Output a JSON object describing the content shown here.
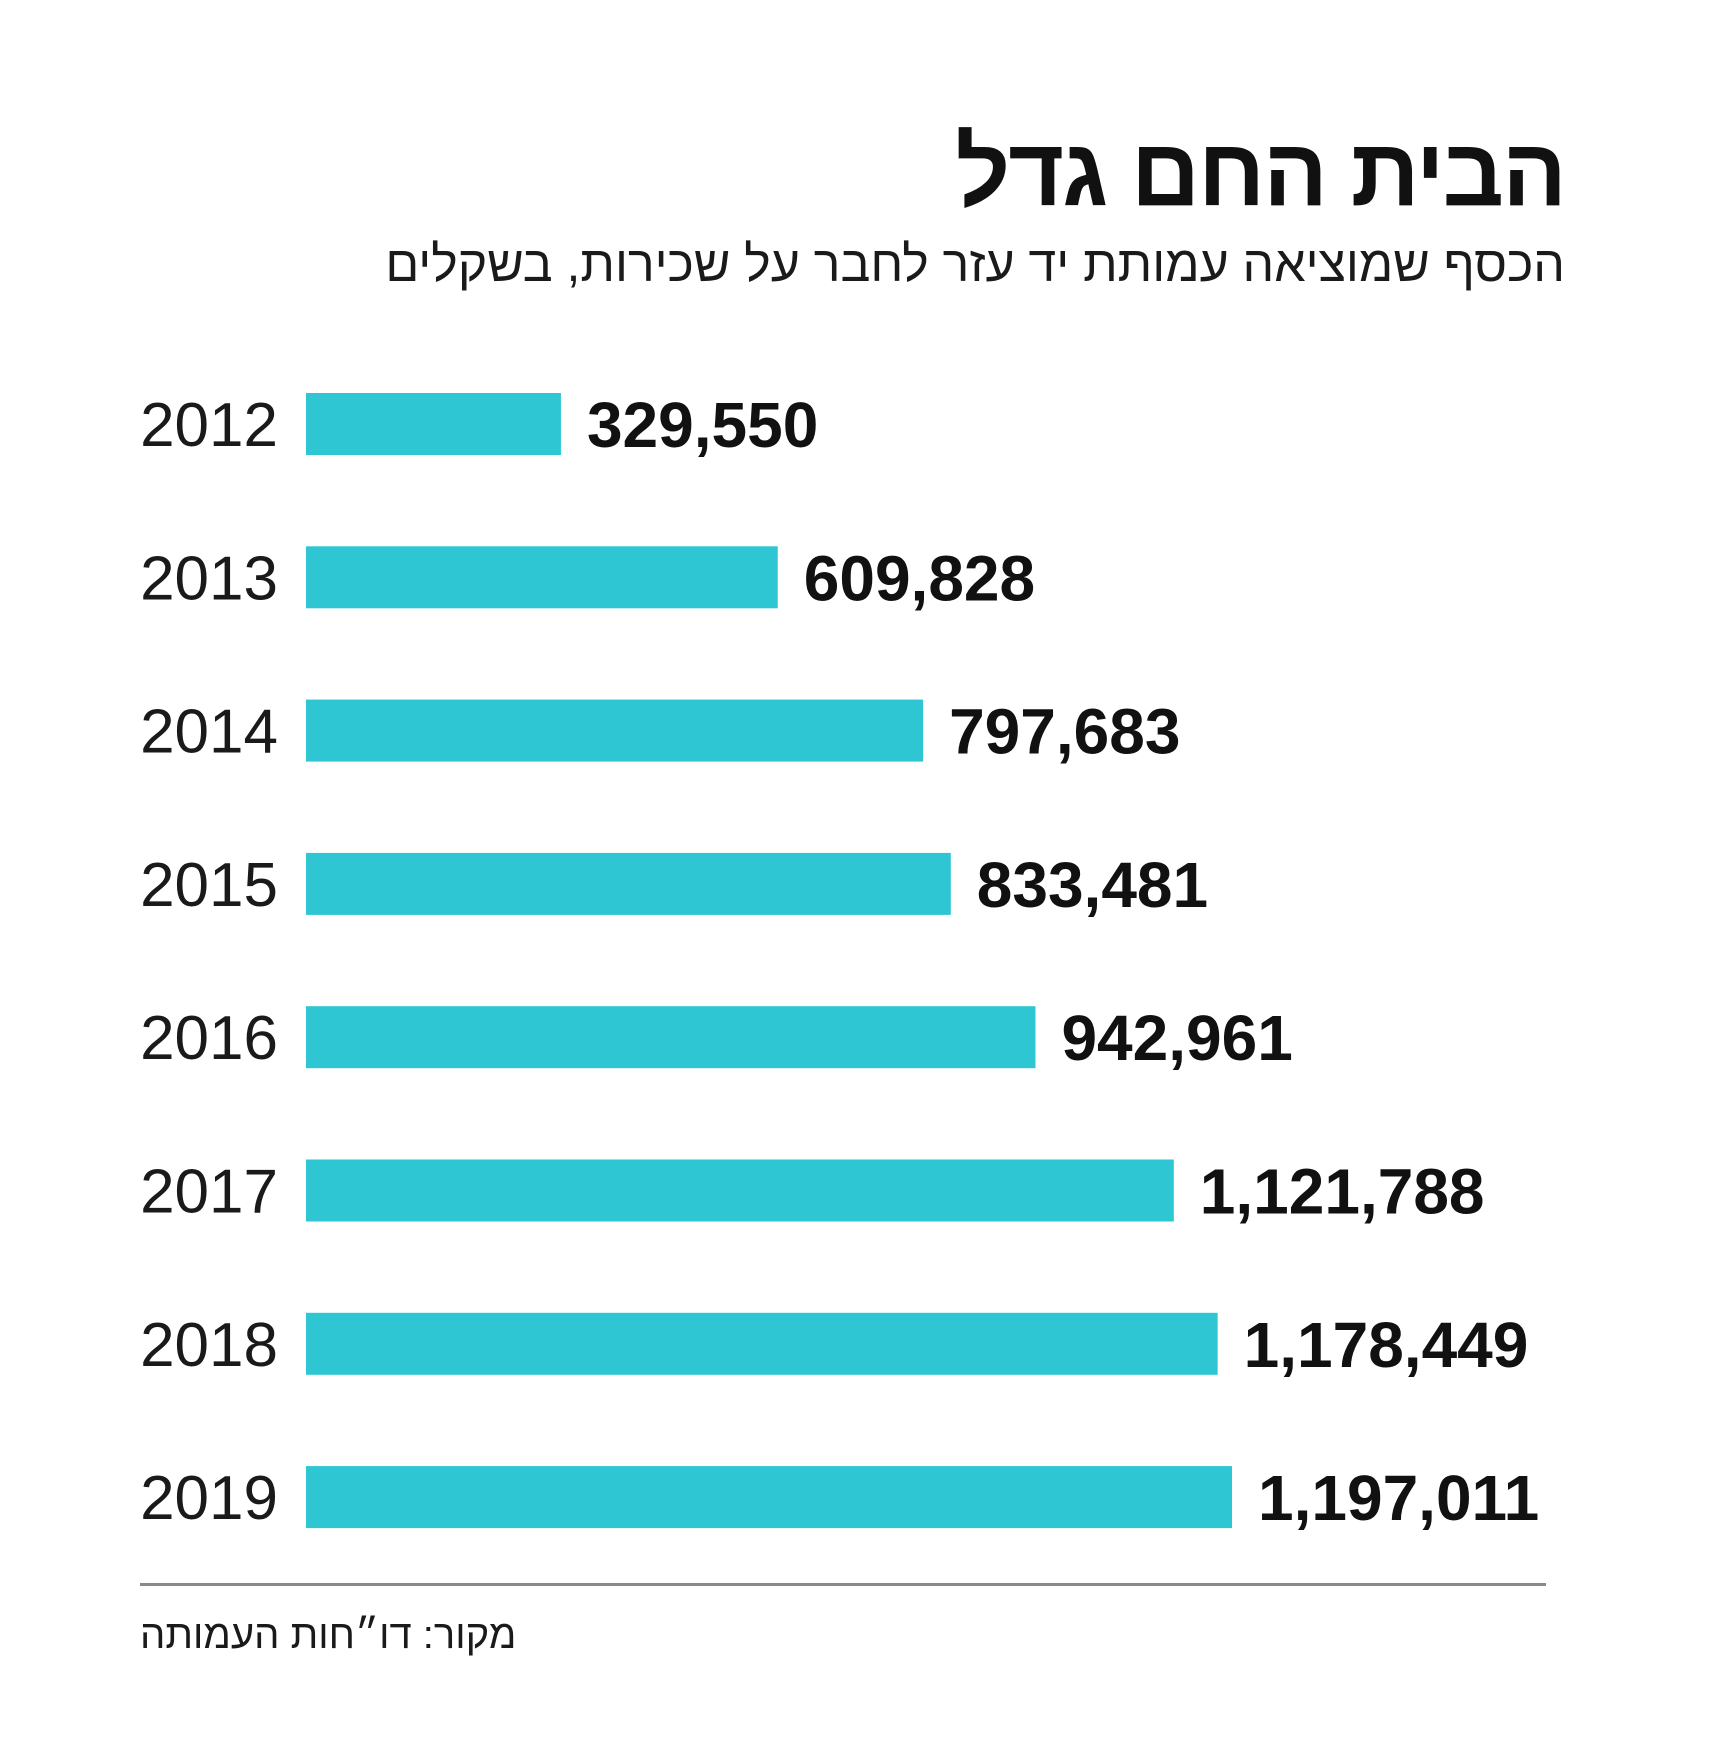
{
  "title": "הבית החם גדל",
  "subtitle": "הכסף שמוציאה עמותת יד עזר לחבר על שכירות, בשקלים",
  "source": "מקור: דו״חות העמותה",
  "colors": {
    "bar": "#2ec6d3",
    "text": "#111111",
    "divider": "#8a8a8a"
  },
  "chart_data": {
    "type": "bar",
    "orientation": "horizontal",
    "categories": [
      "2012",
      "2013",
      "2014",
      "2015",
      "2016",
      "2017",
      "2018",
      "2019"
    ],
    "values": [
      329550,
      609828,
      797683,
      833481,
      942961,
      1121788,
      1178449,
      1197011
    ],
    "value_labels": [
      "329,550",
      "609,828",
      "797,683",
      "833,481",
      "942,961",
      "1,121,788",
      "1,178,449",
      "1,197,011"
    ],
    "title": "הבית החם גדל",
    "subtitle": "הכסף שמוציאה עמותת יד עזר לחבר על שכירות, בשקלים",
    "xlim": [
      0,
      1197011
    ],
    "grid": false,
    "legend": "none"
  }
}
